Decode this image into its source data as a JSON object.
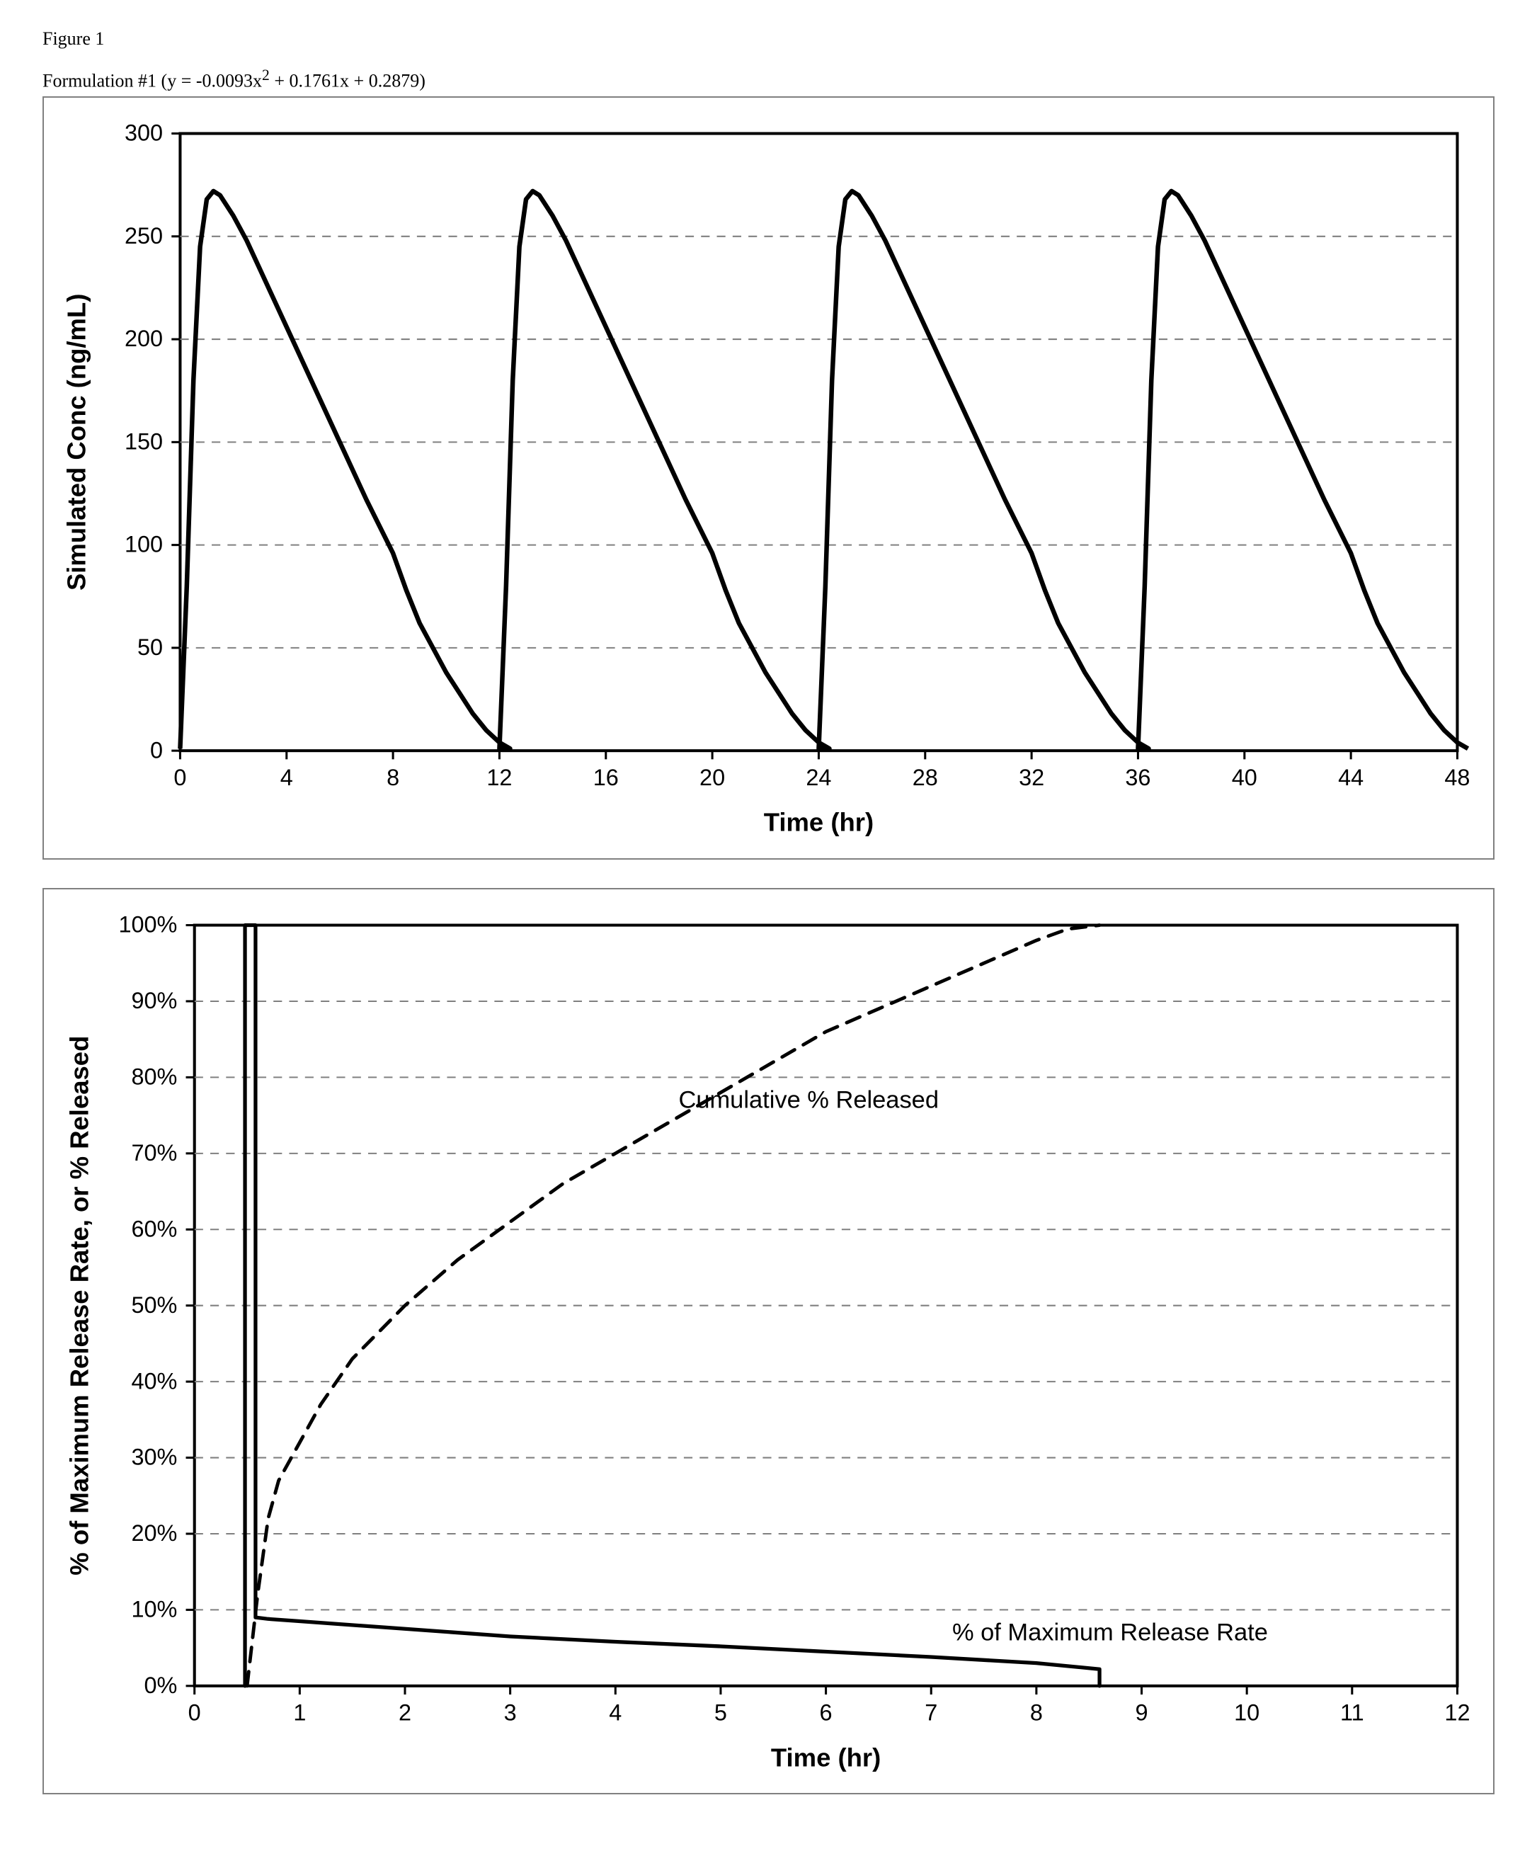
{
  "figure_label": "Figure 1",
  "subtitle_prefix": "Formulation #1 (y = -0.0093x",
  "subtitle_sup": "2",
  "subtitle_suffix": " + 0.1761x + 0.2879)",
  "chart1": {
    "type": "line",
    "xlabel": "Time (hr)",
    "ylabel": "Simulated Conc (ng/mL)",
    "xlim": [
      0,
      48
    ],
    "ylim": [
      0,
      300
    ],
    "xtick_step": 4,
    "ytick_step": 50,
    "grid_color": "#808080",
    "grid_dash": "6,5",
    "line_color": "#000000",
    "line_width": 3.2,
    "axis_color": "#000000",
    "background_color": "#ffffff",
    "label_fontsize": 18,
    "tick_fontsize": 16,
    "cycle_period": 12,
    "cycle_count": 4,
    "cycle_template_x": [
      0,
      0.25,
      0.5,
      0.75,
      1.0,
      1.25,
      1.5,
      2,
      2.5,
      3,
      4,
      5,
      6,
      7,
      8,
      8.5,
      9,
      9.5,
      10,
      10.5,
      11,
      11.5,
      12,
      12.4
    ],
    "cycle_template_y": [
      1,
      80,
      180,
      245,
      268,
      272,
      270,
      260,
      248,
      234,
      206,
      178,
      150,
      122,
      96,
      78,
      62,
      50,
      38,
      28,
      18,
      10,
      4,
      1
    ]
  },
  "chart2": {
    "type": "line",
    "xlabel": "Time (hr)",
    "ylabel": "% of Maximum Release Rate, or % Released",
    "xlim": [
      0,
      12
    ],
    "ylim": [
      0,
      100
    ],
    "xtick_step": 1,
    "ytick_step": 10,
    "tick_suffix_y": "%",
    "grid_color": "#808080",
    "grid_dash": "6,5",
    "axis_color": "#000000",
    "background_color": "#ffffff",
    "label_fontsize": 18,
    "tick_fontsize": 16,
    "series": [
      {
        "name": "cumulative",
        "annotation": "Cumulative % Released",
        "annotation_xy": [
          4.6,
          76
        ],
        "color": "#000000",
        "width": 2.4,
        "dash": "10,7",
        "x": [
          0.5,
          0.6,
          0.7,
          0.8,
          1.0,
          1.2,
          1.5,
          2.0,
          2.5,
          3.0,
          3.5,
          4.0,
          4.5,
          5.0,
          5.5,
          6.0,
          6.5,
          7.0,
          7.5,
          8.0,
          8.3,
          8.6
        ],
        "y": [
          0,
          12,
          22,
          27,
          32,
          37,
          43,
          50,
          56,
          61,
          66,
          70,
          74,
          78,
          82,
          86,
          89,
          92,
          95,
          98,
          99.5,
          100
        ]
      },
      {
        "name": "rate",
        "annotation": "% of Maximum Release Rate",
        "annotation_xy": [
          7.2,
          6
        ],
        "color": "#000000",
        "width": 2.6,
        "dash": null,
        "x": [
          0.48,
          0.48,
          0.58,
          0.58,
          0.7,
          1.0,
          2.0,
          3.0,
          4.0,
          5.0,
          6.0,
          7.0,
          8.0,
          8.6,
          8.6
        ],
        "y": [
          0,
          100,
          100,
          9,
          8.8,
          8.5,
          7.5,
          6.5,
          5.8,
          5.2,
          4.5,
          3.8,
          3.0,
          2.2,
          0
        ]
      }
    ]
  }
}
